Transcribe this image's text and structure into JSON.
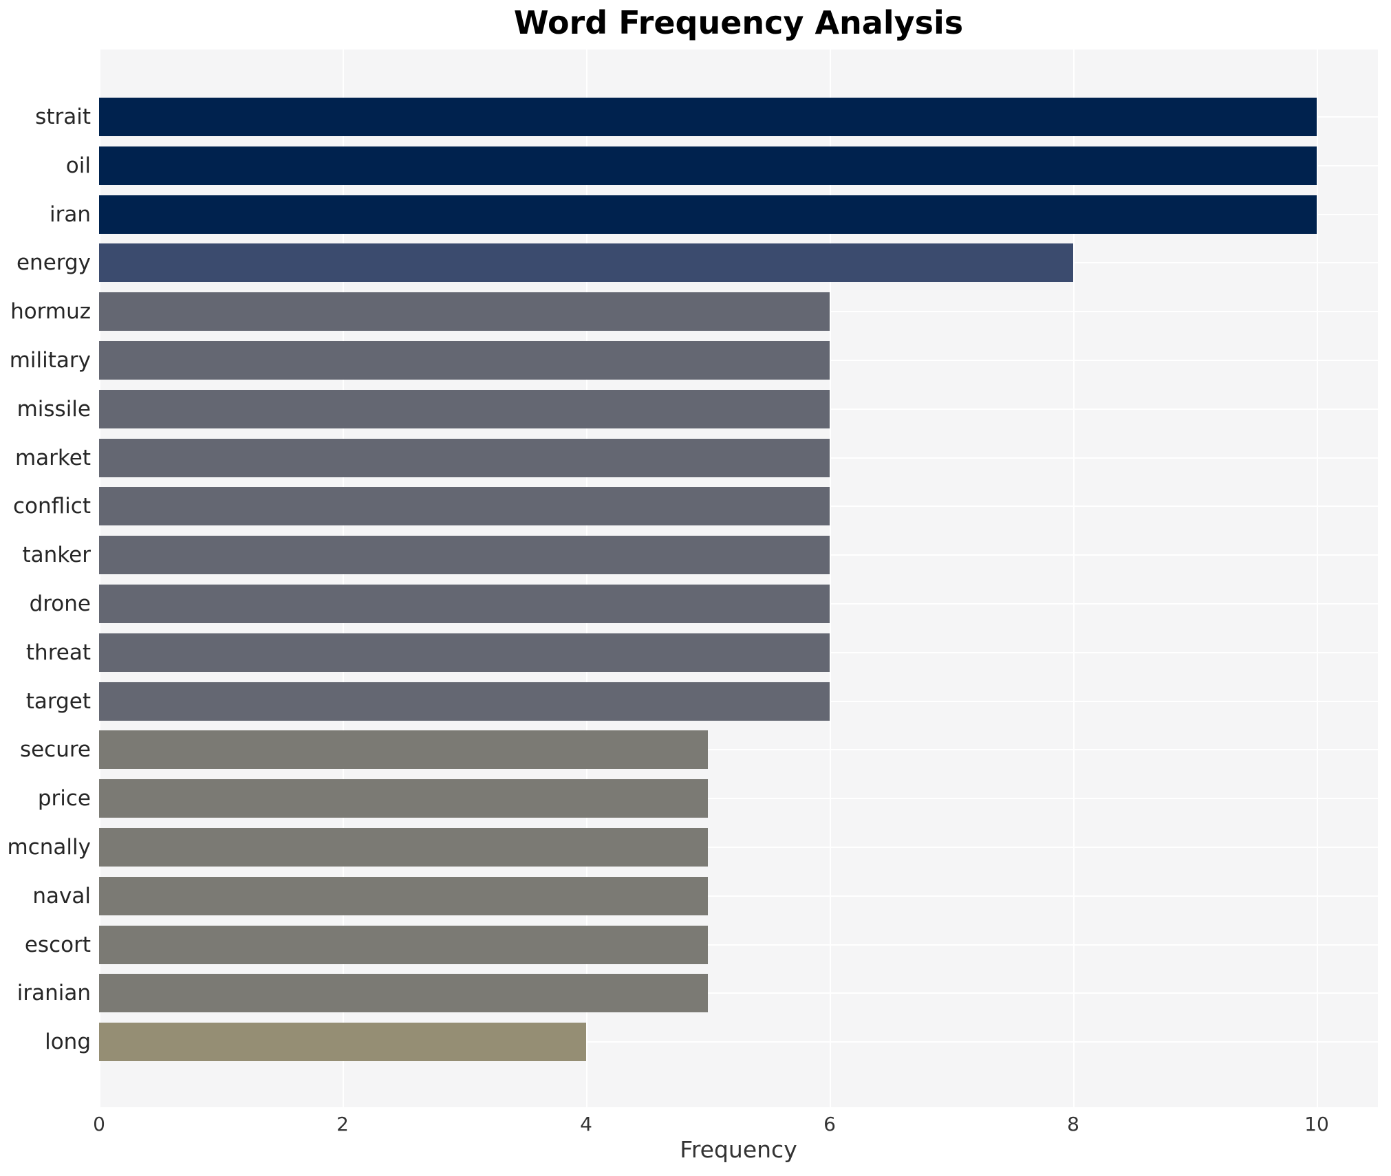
{
  "title": "Word Frequency Analysis",
  "chart_data": {
    "type": "bar",
    "orientation": "horizontal",
    "title": "Word Frequency Analysis",
    "xlabel": "Frequency",
    "ylabel": "",
    "categories": [
      "strait",
      "oil",
      "iran",
      "energy",
      "hormuz",
      "military",
      "missile",
      "market",
      "conflict",
      "tanker",
      "drone",
      "threat",
      "target",
      "secure",
      "price",
      "mcnally",
      "naval",
      "escort",
      "iranian",
      "long"
    ],
    "values": [
      10,
      10,
      10,
      8,
      6,
      6,
      6,
      6,
      6,
      6,
      6,
      6,
      6,
      5,
      5,
      5,
      5,
      5,
      5,
      4
    ],
    "bar_colors": [
      "#00224e",
      "#00224e",
      "#00224e",
      "#3b4b6e",
      "#646772",
      "#646772",
      "#646772",
      "#646772",
      "#646772",
      "#646772",
      "#646772",
      "#646772",
      "#646772",
      "#7b7a74",
      "#7b7a74",
      "#7b7a74",
      "#7b7a74",
      "#7b7a74",
      "#7b7a74",
      "#958e74"
    ],
    "xticks": [
      0,
      2,
      4,
      6,
      8,
      10
    ],
    "xlim": [
      0,
      10.5
    ],
    "grid": true,
    "legend": "none",
    "plot_bg_color": "#f5f5f6",
    "grid_color": "#ffffff",
    "title_color": "#000000",
    "label_color": "#262626",
    "tick_color": "#333333"
  }
}
